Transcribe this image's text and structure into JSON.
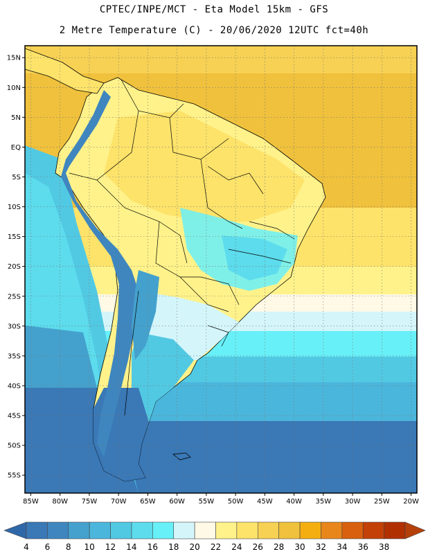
{
  "header": {
    "line1": "CPTEC/INPE/MCT -  Eta Model 15km - GFS",
    "line2": "2 Metre Temperature (C) - 20/06/2020 12UTC fct=40h"
  },
  "map": {
    "lon_range": [
      -86,
      -19
    ],
    "lat_range": [
      -58,
      17
    ],
    "lat_ticks": [
      {
        "value": 15,
        "label": "15N"
      },
      {
        "value": 10,
        "label": "10N"
      },
      {
        "value": 5,
        "label": "5N"
      },
      {
        "value": 0,
        "label": "EQ"
      },
      {
        "value": -5,
        "label": "5S"
      },
      {
        "value": -10,
        "label": "10S"
      },
      {
        "value": -15,
        "label": "15S"
      },
      {
        "value": -20,
        "label": "20S"
      },
      {
        "value": -25,
        "label": "25S"
      },
      {
        "value": -30,
        "label": "30S"
      },
      {
        "value": -35,
        "label": "35S"
      },
      {
        "value": -40,
        "label": "40S"
      },
      {
        "value": -45,
        "label": "45S"
      },
      {
        "value": -50,
        "label": "50S"
      },
      {
        "value": -55,
        "label": "55S"
      }
    ],
    "lon_ticks": [
      {
        "value": -85,
        "label": "85W"
      },
      {
        "value": -80,
        "label": "80W"
      },
      {
        "value": -75,
        "label": "75W"
      },
      {
        "value": -70,
        "label": "70W"
      },
      {
        "value": -65,
        "label": "65W"
      },
      {
        "value": -60,
        "label": "60W"
      },
      {
        "value": -55,
        "label": "55W"
      },
      {
        "value": -50,
        "label": "50W"
      },
      {
        "value": -45,
        "label": "45W"
      },
      {
        "value": -40,
        "label": "40W"
      },
      {
        "value": -35,
        "label": "35W"
      },
      {
        "value": -30,
        "label": "30W"
      },
      {
        "value": -25,
        "label": "25W"
      },
      {
        "value": -20,
        "label": "20W"
      }
    ],
    "gridlines": true
  },
  "colorbar": {
    "values": [
      4,
      6,
      8,
      10,
      12,
      14,
      16,
      18,
      20,
      22,
      24,
      26,
      28,
      30,
      32,
      34,
      36,
      38
    ],
    "colors": [
      "#3a78b6",
      "#3f86bf",
      "#44a1cd",
      "#4bb6dc",
      "#52c9e3",
      "#5cdced",
      "#68f0f8",
      "#d4f6fb",
      "#fff9e6",
      "#fff28a",
      "#fde36a",
      "#f7d153",
      "#f0c13c",
      "#f4ae10",
      "#e8861c",
      "#d8600e",
      "#c34006",
      "#b03000",
      "#b5400a"
    ],
    "low_arrow_color": "#2f68a8",
    "high_arrow_color": "#b5400a"
  }
}
